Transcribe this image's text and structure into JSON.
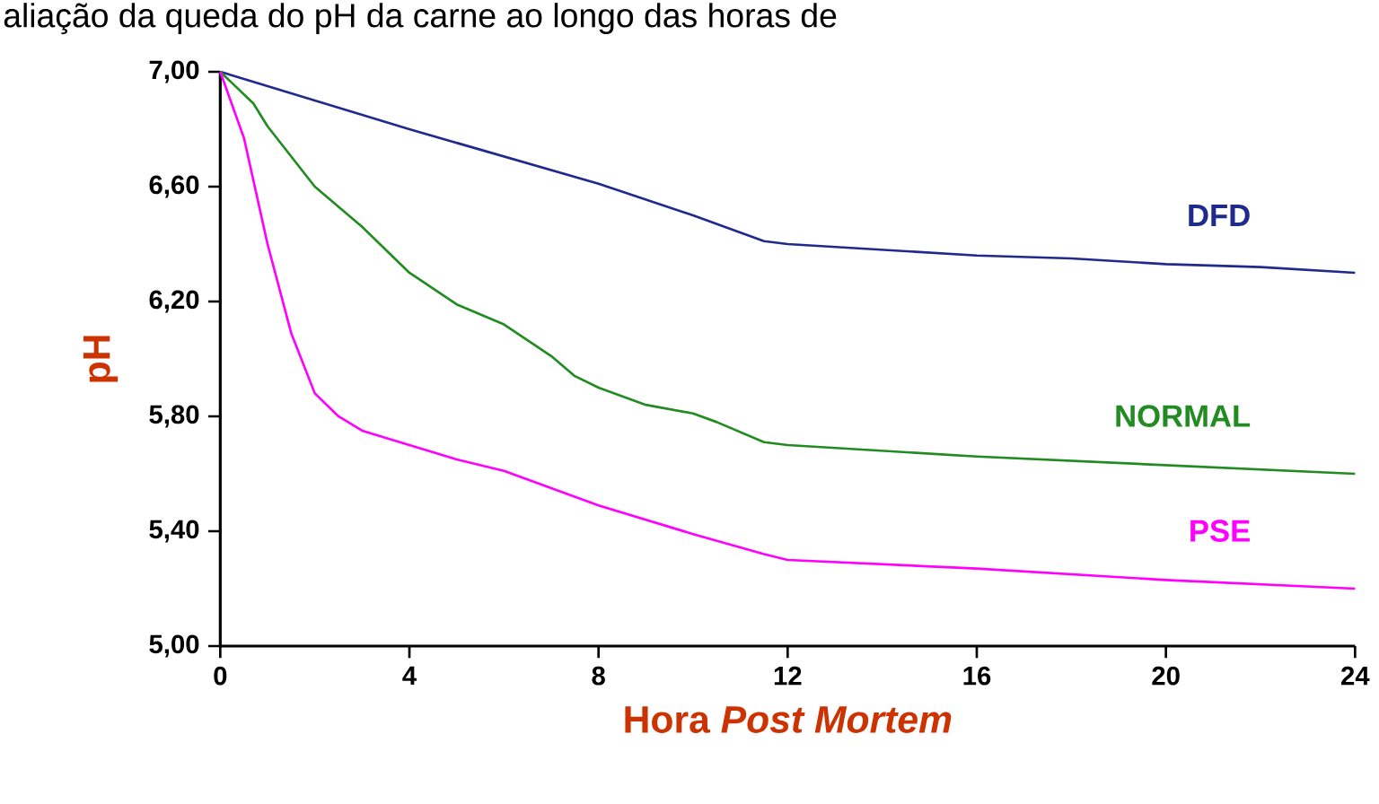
{
  "chart_data": {
    "type": "line",
    "title": "aliação da queda do pH da carne ao longo das horas de",
    "xlabel": "Hora *Post Mortem*",
    "ylabel": "pH",
    "xlim": [
      0,
      24
    ],
    "xticks": [
      0,
      4,
      8,
      12,
      16,
      20,
      24
    ],
    "ylim": [
      5,
      7
    ],
    "yticks": [
      {
        "value": 5,
        "label": "5,00"
      },
      {
        "value": 5.4,
        "label": "5,40"
      },
      {
        "value": 5.8,
        "label": "5,80"
      },
      {
        "value": 6.2,
        "label": "6,20"
      },
      {
        "value": 6.6,
        "label": "6,60"
      },
      {
        "value": 7,
        "label": "7,00"
      }
    ],
    "grid": false,
    "legend": false,
    "marker": "none",
    "line_style": "solid",
    "series": [
      {
        "name": "DFD",
        "color": "#1f2a8c",
        "x": [
          0,
          4,
          8,
          10,
          11.5,
          12,
          14,
          16,
          18,
          20,
          22,
          24
        ],
        "values": [
          7.0,
          6.8,
          6.61,
          6.5,
          6.41,
          6.4,
          6.38,
          6.36,
          6.35,
          6.33,
          6.32,
          6.3
        ]
      },
      {
        "name": "NORMAL",
        "color": "#228b22",
        "x": [
          0,
          0.7,
          1,
          2,
          3,
          4,
          5,
          6,
          7,
          7.5,
          8,
          9,
          10,
          10.5,
          11.5,
          12,
          16,
          20,
          24
        ],
        "values": [
          7.0,
          6.89,
          6.81,
          6.6,
          6.46,
          6.3,
          6.19,
          6.12,
          6.01,
          5.94,
          5.9,
          5.84,
          5.81,
          5.78,
          5.71,
          5.7,
          5.66,
          5.63,
          5.6
        ]
      },
      {
        "name": "PSE",
        "color": "#ff00ff",
        "x": [
          0,
          0.5,
          1,
          1.5,
          2,
          2.5,
          3,
          4,
          5,
          6,
          8,
          10,
          11.5,
          12,
          16,
          20,
          24
        ],
        "values": [
          7.0,
          6.77,
          6.4,
          6.09,
          5.88,
          5.8,
          5.75,
          5.7,
          5.65,
          5.61,
          5.49,
          5.39,
          5.32,
          5.3,
          5.27,
          5.23,
          5.2
        ]
      }
    ]
  }
}
